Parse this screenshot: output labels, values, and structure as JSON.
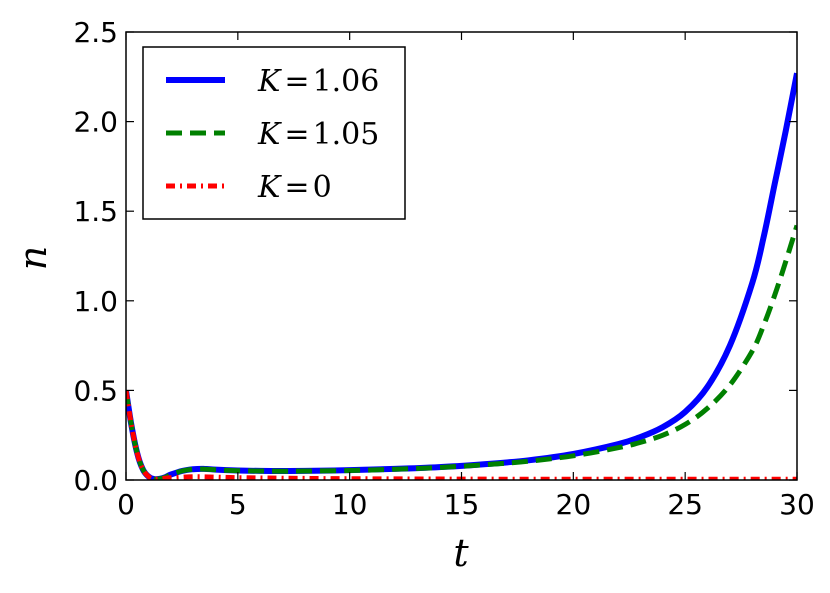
{
  "chart_data": {
    "type": "line",
    "xlabel": "t",
    "ylabel": "n",
    "xlim": [
      0,
      30
    ],
    "ylim": [
      0,
      2.5
    ],
    "xticks": [
      {
        "value": 0,
        "label": "0"
      },
      {
        "value": 5,
        "label": "5"
      },
      {
        "value": 10,
        "label": "10"
      },
      {
        "value": 15,
        "label": "15"
      },
      {
        "value": 20,
        "label": "20"
      },
      {
        "value": 25,
        "label": "25"
      },
      {
        "value": 30,
        "label": "30"
      }
    ],
    "yticks": [
      {
        "value": 0,
        "label": "0.0"
      },
      {
        "value": 0.5,
        "label": "0.5"
      },
      {
        "value": 1.0,
        "label": "1.0"
      },
      {
        "value": 1.5,
        "label": "1.5"
      },
      {
        "value": 2.0,
        "label": "2.0"
      },
      {
        "value": 2.5,
        "label": "2.5"
      }
    ],
    "grid": false,
    "legend_position": "top-left",
    "series": [
      {
        "name": "K = 1.06",
        "legend_var": "K",
        "legend_value": "1.06",
        "color": "#0000ff",
        "style": "solid",
        "x": [
          0,
          0.25,
          0.5,
          0.75,
          1.0,
          1.25,
          1.5,
          1.75,
          2.0,
          2.5,
          3.0,
          3.5,
          4.0,
          5.0,
          6.0,
          7.0,
          8.0,
          10.0,
          12.0,
          14.0,
          16.0,
          18.0,
          20.0,
          22.0,
          23.0,
          24.0,
          25.0,
          26.0,
          27.0,
          28.0,
          28.5,
          29.0,
          29.5,
          30.0
        ],
        "y": [
          0.5,
          0.3,
          0.15,
          0.06,
          0.02,
          0.005,
          0.006,
          0.015,
          0.03,
          0.05,
          0.06,
          0.062,
          0.058,
          0.053,
          0.051,
          0.05,
          0.051,
          0.055,
          0.062,
          0.072,
          0.088,
          0.11,
          0.145,
          0.2,
          0.24,
          0.295,
          0.38,
          0.52,
          0.75,
          1.1,
          1.35,
          1.65,
          1.95,
          2.27
        ]
      },
      {
        "name": "K = 1.05",
        "legend_var": "K",
        "legend_value": "1.05",
        "color": "#008000",
        "style": "dashed",
        "x": [
          0,
          0.25,
          0.5,
          0.75,
          1.0,
          1.25,
          1.5,
          1.75,
          2.0,
          2.5,
          3.0,
          3.5,
          4.0,
          5.0,
          6.0,
          7.0,
          8.0,
          10.0,
          12.0,
          14.0,
          16.0,
          18.0,
          20.0,
          22.0,
          23.0,
          24.0,
          25.0,
          26.0,
          27.0,
          28.0,
          28.5,
          29.0,
          29.5,
          30.0
        ],
        "y": [
          0.5,
          0.3,
          0.15,
          0.06,
          0.02,
          0.005,
          0.006,
          0.015,
          0.03,
          0.05,
          0.06,
          0.061,
          0.057,
          0.052,
          0.05,
          0.049,
          0.05,
          0.053,
          0.06,
          0.07,
          0.085,
          0.105,
          0.135,
          0.18,
          0.21,
          0.25,
          0.31,
          0.4,
          0.53,
          0.72,
          0.86,
          1.03,
          1.22,
          1.42
        ]
      },
      {
        "name": "K = 0",
        "legend_var": "K",
        "legend_value": "0",
        "color": "#ff0000",
        "style": "dash-dot",
        "x": [
          0,
          0.25,
          0.5,
          0.75,
          1.0,
          1.25,
          1.5,
          2.0,
          3.0,
          4.0,
          5.0,
          7.0,
          10.0,
          15.0,
          20.0,
          25.0,
          30.0
        ],
        "y": [
          0.5,
          0.3,
          0.15,
          0.06,
          0.02,
          0.005,
          0.006,
          0.012,
          0.018,
          0.016,
          0.013,
          0.01,
          0.007,
          0.005,
          0.004,
          0.004,
          0.004
        ]
      }
    ]
  }
}
